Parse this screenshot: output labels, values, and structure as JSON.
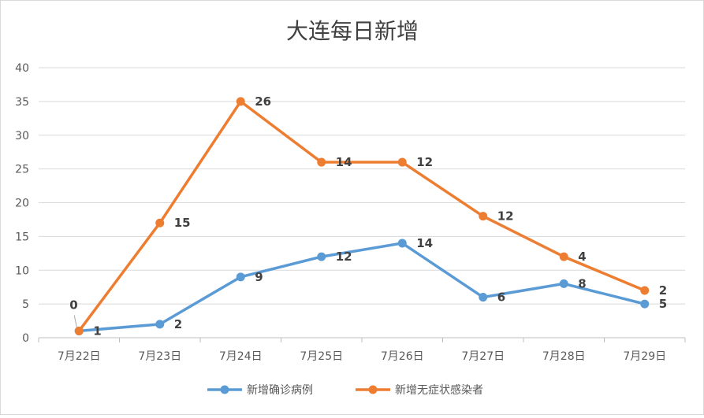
{
  "chart_data": {
    "type": "line",
    "title": "大连每日新增",
    "xlabel": "",
    "ylabel": "",
    "ylim": [
      0,
      40
    ],
    "yticks": [
      0,
      5,
      10,
      15,
      20,
      25,
      30,
      35,
      40
    ],
    "grid": true,
    "legend_position": "bottom",
    "categories": [
      "7月22日",
      "7月23日",
      "7月24日",
      "7月25日",
      "7月26日",
      "7月27日",
      "7月28日",
      "7月29日"
    ],
    "series": [
      {
        "name": "新增确诊病例",
        "color": "#5b9bd5",
        "values": [
          1,
          2,
          9,
          12,
          14,
          6,
          8,
          5
        ],
        "data_labels": [
          "1",
          "2",
          "9",
          "12",
          "14",
          "6",
          "8",
          "5"
        ]
      },
      {
        "name": "新增无症状感染者",
        "color": "#ed7d31",
        "values": [
          1,
          17,
          35,
          26,
          26,
          18,
          12,
          7
        ],
        "data_labels": [
          "0",
          "15",
          "26",
          "14",
          "12",
          "12",
          "4",
          "2"
        ]
      }
    ]
  }
}
